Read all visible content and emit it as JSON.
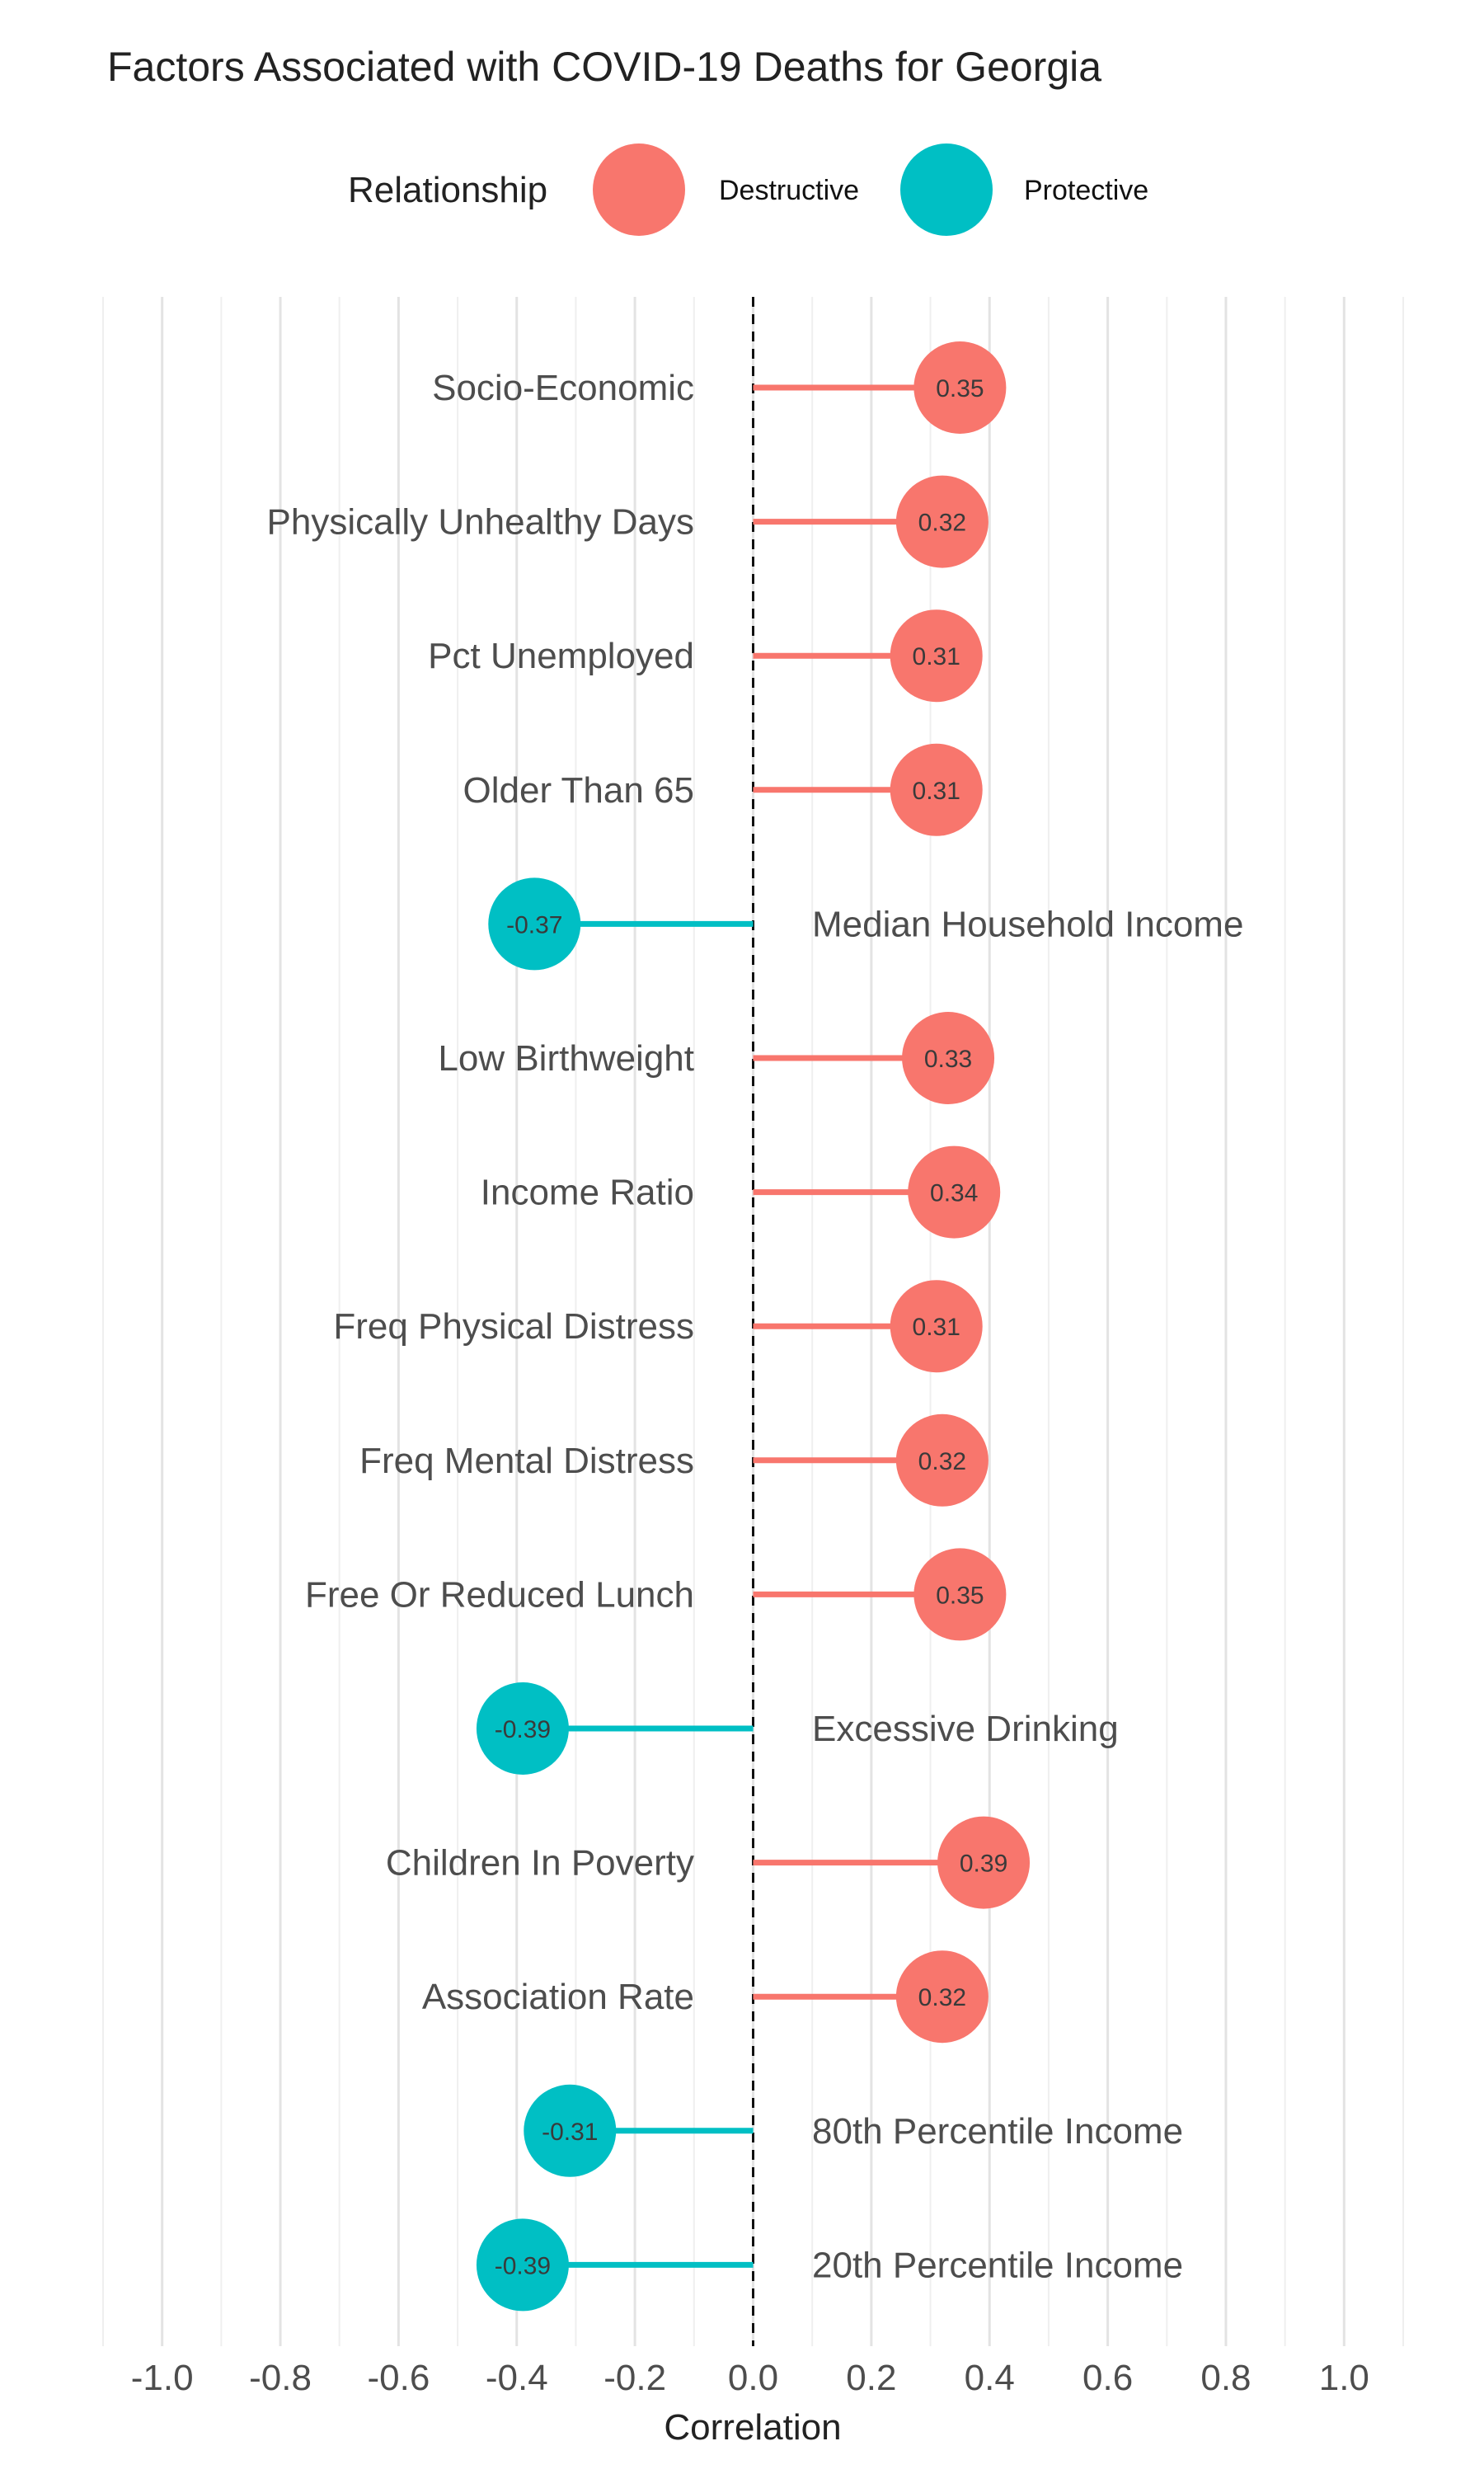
{
  "chart_data": {
    "type": "lollipop",
    "title": "Factors Associated with COVID-19 Deaths for Georgia",
    "xlabel": "Correlation",
    "ylabel": "",
    "xlim": [
      -1.1,
      1.1
    ],
    "x_ticks": [
      -1.0,
      -0.8,
      -0.6,
      -0.4,
      -0.2,
      0.0,
      0.2,
      0.4,
      0.6,
      0.8,
      1.0
    ],
    "x_tick_labels": [
      "-1.0",
      "-0.8",
      "-0.6",
      "-0.4",
      "-0.2",
      "0.0",
      "0.2",
      "0.4",
      "0.6",
      "0.8",
      "1.0"
    ],
    "grid": true,
    "reference_line": 0,
    "legend": {
      "title": "Relationship",
      "position": "top",
      "entries": [
        {
          "label": "Destructive",
          "color": "#F8766D"
        },
        {
          "label": "Protective",
          "color": "#00BFC4"
        }
      ]
    },
    "data": [
      {
        "factor": "Socio-Economic",
        "value": 0.35,
        "label": "0.35",
        "relationship": "Destructive"
      },
      {
        "factor": "Physically Unhealthy Days",
        "value": 0.32,
        "label": "0.32",
        "relationship": "Destructive"
      },
      {
        "factor": "Pct Unemployed",
        "value": 0.31,
        "label": "0.31",
        "relationship": "Destructive"
      },
      {
        "factor": "Older Than 65",
        "value": 0.31,
        "label": "0.31",
        "relationship": "Destructive"
      },
      {
        "factor": "Median Household Income",
        "value": -0.37,
        "label": "-0.37",
        "relationship": "Protective"
      },
      {
        "factor": "Low Birthweight",
        "value": 0.33,
        "label": "0.33",
        "relationship": "Destructive"
      },
      {
        "factor": "Income Ratio",
        "value": 0.34,
        "label": "0.34",
        "relationship": "Destructive"
      },
      {
        "factor": "Freq Physical Distress",
        "value": 0.31,
        "label": "0.31",
        "relationship": "Destructive"
      },
      {
        "factor": "Freq Mental Distress",
        "value": 0.32,
        "label": "0.32",
        "relationship": "Destructive"
      },
      {
        "factor": "Free Or Reduced Lunch",
        "value": 0.35,
        "label": "0.35",
        "relationship": "Destructive"
      },
      {
        "factor": "Excessive Drinking",
        "value": -0.39,
        "label": "-0.39",
        "relationship": "Protective"
      },
      {
        "factor": "Children In Poverty",
        "value": 0.39,
        "label": "0.39",
        "relationship": "Destructive"
      },
      {
        "factor": "Association Rate",
        "value": 0.32,
        "label": "0.32",
        "relationship": "Destructive"
      },
      {
        "factor": "80th Percentile Income",
        "value": -0.31,
        "label": "-0.31",
        "relationship": "Protective"
      },
      {
        "factor": "20th Percentile Income",
        "value": -0.39,
        "label": "-0.39",
        "relationship": "Protective"
      }
    ]
  }
}
